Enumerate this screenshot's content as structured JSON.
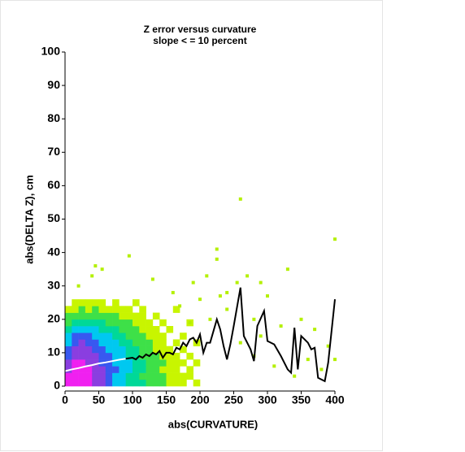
{
  "chart_data": {
    "type": "density",
    "title": "Z error versus curvature",
    "subtitle": "slope < = 10 percent",
    "xlabel": "abs(CURVATURE)",
    "ylabel": "abs(DELTA Z), cm",
    "xlim": [
      0,
      400
    ],
    "ylim": [
      0,
      100
    ],
    "xticks": [
      0,
      50,
      100,
      150,
      200,
      250,
      300,
      350,
      400
    ],
    "yticks": [
      0,
      10,
      20,
      30,
      40,
      50,
      60,
      70,
      80,
      90,
      100
    ],
    "heatmap": {
      "xbins": [
        0,
        10,
        20,
        30,
        40,
        50,
        60,
        70,
        80,
        90,
        100,
        110,
        120,
        130,
        140,
        150,
        160,
        170,
        180,
        190,
        200
      ],
      "ybins": [
        0,
        2,
        4,
        6,
        8,
        10,
        12,
        14,
        16,
        18,
        20,
        22,
        24,
        26
      ],
      "colors": [
        "#c8f500",
        "#3ee048",
        "#00d898",
        "#00c8f0",
        "#3858f0",
        "#8a3ee0",
        "#f020f0"
      ],
      "levels": [
        [
          7,
          7,
          7,
          7,
          6,
          6,
          5,
          4,
          4,
          3,
          3,
          3,
          2,
          2,
          2,
          1,
          1,
          1,
          0,
          1
        ],
        [
          7,
          7,
          7,
          7,
          6,
          6,
          5,
          4,
          4,
          3,
          3,
          2,
          2,
          2,
          2,
          1,
          1,
          1,
          1,
          0
        ],
        [
          6,
          7,
          7,
          7,
          6,
          6,
          5,
          5,
          4,
          4,
          3,
          3,
          2,
          2,
          1,
          1,
          1,
          0,
          1,
          0
        ],
        [
          6,
          7,
          7,
          6,
          6,
          5,
          5,
          4,
          4,
          4,
          3,
          3,
          2,
          2,
          2,
          1,
          1,
          1,
          0,
          1
        ],
        [
          5,
          6,
          6,
          6,
          6,
          5,
          5,
          4,
          4,
          3,
          3,
          2,
          2,
          2,
          1,
          1,
          1,
          0,
          1,
          0
        ],
        [
          5,
          6,
          6,
          6,
          5,
          5,
          4,
          4,
          4,
          3,
          3,
          2,
          2,
          1,
          1,
          1,
          0,
          1,
          0,
          0
        ],
        [
          4,
          5,
          6,
          5,
          5,
          4,
          4,
          4,
          3,
          3,
          2,
          2,
          2,
          1,
          1,
          0,
          1,
          0,
          0,
          1
        ],
        [
          4,
          5,
          5,
          5,
          4,
          4,
          4,
          3,
          3,
          2,
          2,
          2,
          1,
          1,
          1,
          0,
          0,
          1,
          0,
          0
        ],
        [
          3,
          4,
          4,
          4,
          4,
          3,
          3,
          3,
          2,
          2,
          2,
          1,
          1,
          1,
          0,
          1,
          0,
          0,
          0,
          0
        ],
        [
          2,
          3,
          3,
          3,
          3,
          3,
          2,
          2,
          2,
          2,
          1,
          1,
          1,
          0,
          1,
          0,
          0,
          0,
          1,
          0
        ],
        [
          2,
          2,
          2,
          2,
          2,
          2,
          2,
          2,
          1,
          1,
          1,
          1,
          0,
          1,
          0,
          0,
          0,
          0,
          0,
          0
        ],
        [
          1,
          1,
          2,
          1,
          2,
          1,
          1,
          1,
          1,
          1,
          0,
          1,
          0,
          0,
          0,
          0,
          1,
          0,
          0,
          0
        ],
        [
          0,
          1,
          1,
          1,
          1,
          1,
          0,
          1,
          0,
          0,
          1,
          0,
          0,
          0,
          0,
          0,
          0,
          0,
          0,
          0
        ]
      ]
    },
    "points": {
      "color": "#b4f000",
      "x": [
        20,
        40,
        45,
        55,
        95,
        130,
        160,
        190,
        200,
        225,
        225,
        240,
        260,
        270,
        290,
        300,
        330,
        350,
        370,
        400,
        400,
        380,
        260,
        290,
        320,
        215,
        240,
        280,
        170,
        185,
        210,
        230,
        255,
        390,
        360,
        340,
        310,
        280
      ],
      "y": [
        30,
        33,
        36,
        35,
        39,
        32,
        28,
        31,
        26,
        41,
        38,
        28,
        56,
        33,
        31,
        27,
        35,
        20,
        17,
        44,
        8,
        5,
        13,
        15,
        18,
        20,
        23,
        20,
        24,
        19,
        33,
        27,
        31,
        12,
        8,
        3,
        6,
        9
      ]
    },
    "lines": [
      {
        "color": "#ffffff",
        "x": [
          0,
          10,
          20,
          30,
          40,
          50,
          60,
          70,
          80,
          90
        ],
        "y": [
          4.5,
          5,
          5.4,
          5.9,
          6.3,
          6.8,
          7.1,
          7.5,
          7.9,
          8.2
        ]
      },
      {
        "color": "#000000",
        "x": [
          90,
          100,
          105,
          110,
          115,
          120,
          125,
          130,
          135,
          140,
          145,
          150,
          155,
          160,
          165,
          170,
          175,
          180,
          185,
          190,
          195,
          200,
          205,
          210,
          215,
          225,
          230,
          235,
          240,
          245,
          250,
          260,
          265,
          275,
          280,
          285,
          295,
          300,
          310,
          320,
          330,
          335,
          340,
          345,
          350,
          360,
          365,
          370,
          375,
          385,
          390,
          400
        ],
        "y": [
          8.2,
          8.5,
          8,
          9,
          8.5,
          9.5,
          9,
          10,
          9.5,
          10.5,
          8.5,
          10,
          10,
          9.5,
          11.5,
          11,
          13,
          12,
          14,
          14.5,
          13,
          15.5,
          10,
          13,
          13,
          20,
          17,
          12,
          8,
          12.5,
          18,
          29.5,
          15,
          11,
          7.5,
          18,
          22.5,
          13.5,
          12.5,
          9,
          5,
          4,
          17.5,
          5,
          15,
          13,
          11,
          11.5,
          2.5,
          1.5,
          7,
          26
        ]
      }
    ]
  }
}
